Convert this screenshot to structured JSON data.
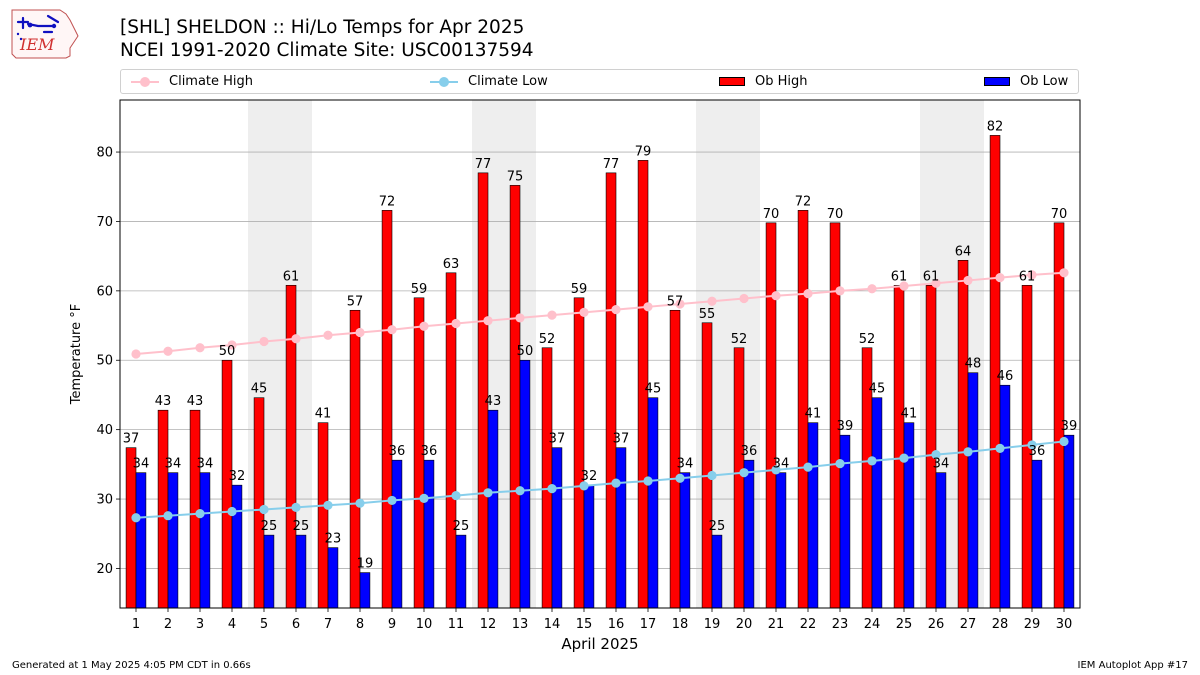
{
  "header": {
    "logo_text": "IEM",
    "title_line1": "[SHL] SHELDON :: Hi/Lo Temps for Apr 2025",
    "title_line2": "NCEI 1991-2020 Climate Site: USC00137594"
  },
  "legend": [
    {
      "label": "Climate High",
      "kind": "line",
      "color": "#ffc0cb"
    },
    {
      "label": "Climate Low",
      "kind": "line",
      "color": "#87ceeb"
    },
    {
      "label": "Ob High",
      "kind": "box",
      "color": "#ff0000"
    },
    {
      "label": "Ob Low",
      "kind": "box",
      "color": "#0000ff"
    }
  ],
  "footer": {
    "left": "Generated at 1 May 2025 4:05 PM CDT in 0.66s",
    "right": "IEM Autoplot App #17"
  },
  "chart_data": {
    "type": "bar",
    "xlabel": "April 2025",
    "ylabel": "Temperature °F",
    "ylim": [
      14.3,
      87.5
    ],
    "yticks": [
      20,
      30,
      40,
      50,
      60,
      70,
      80
    ],
    "grid": "horizontal",
    "weekend_shading": [
      [
        5,
        6
      ],
      [
        12,
        13
      ],
      [
        19,
        20
      ],
      [
        26,
        27
      ]
    ],
    "categories": [
      "1",
      "2",
      "3",
      "4",
      "5",
      "6",
      "7",
      "8",
      "9",
      "10",
      "11",
      "12",
      "13",
      "14",
      "15",
      "16",
      "17",
      "18",
      "19",
      "20",
      "21",
      "22",
      "23",
      "24",
      "25",
      "26",
      "27",
      "28",
      "29",
      "30"
    ],
    "series": [
      {
        "name": "Ob High",
        "kind": "bar",
        "color": "#ff0000",
        "values": [
          37.4,
          42.8,
          42.8,
          50,
          44.6,
          60.8,
          41,
          57.2,
          71.6,
          59,
          62.6,
          77,
          75.2,
          51.8,
          59,
          77,
          78.8,
          57.2,
          55.4,
          51.8,
          69.8,
          71.6,
          69.8,
          51.8,
          60.8,
          60.8,
          64.4,
          82.4,
          60.8,
          69.8
        ],
        "labels": [
          "37",
          "43",
          "43",
          "50",
          "45",
          "61",
          "41",
          "57",
          "72",
          "59",
          "63",
          "77",
          "75",
          "52",
          "59",
          "77",
          "79",
          "57",
          "55",
          "52",
          "70",
          "72",
          "70",
          "52",
          "61",
          "61",
          "64",
          "82",
          "61",
          "70"
        ]
      },
      {
        "name": "Ob Low",
        "kind": "bar",
        "color": "#0000ff",
        "values": [
          33.8,
          33.8,
          33.8,
          32,
          24.8,
          24.8,
          23,
          19.4,
          35.6,
          35.6,
          24.8,
          42.8,
          50,
          37.4,
          32,
          37.4,
          44.6,
          33.8,
          24.8,
          35.6,
          33.8,
          41,
          39.2,
          44.6,
          41,
          33.8,
          48.2,
          46.4,
          35.6,
          39.2
        ],
        "labels": [
          "34",
          "34",
          "34",
          "32",
          "25",
          "25",
          "23",
          "19",
          "36",
          "36",
          "25",
          "43",
          "50",
          "37",
          "32",
          "37",
          "45",
          "34",
          "25",
          "36",
          "34",
          "41",
          "39",
          "45",
          "41",
          "34",
          "48",
          "46",
          "36",
          "39"
        ]
      },
      {
        "name": "Climate High",
        "kind": "line",
        "color": "#ffc0cb",
        "values": [
          50.9,
          51.3,
          51.8,
          52.2,
          52.7,
          53.1,
          53.6,
          54,
          54.4,
          54.9,
          55.3,
          55.7,
          56.1,
          56.5,
          56.9,
          57.3,
          57.7,
          58.1,
          58.5,
          58.9,
          59.3,
          59.6,
          60,
          60.3,
          60.7,
          61.1,
          61.5,
          61.9,
          62.3,
          62.6
        ]
      },
      {
        "name": "Climate Low",
        "kind": "line",
        "color": "#87ceeb",
        "values": [
          27.3,
          27.6,
          27.9,
          28.2,
          28.5,
          28.8,
          29.1,
          29.4,
          29.8,
          30.1,
          30.5,
          30.9,
          31.2,
          31.5,
          31.9,
          32.3,
          32.6,
          33,
          33.4,
          33.8,
          34.2,
          34.6,
          35.1,
          35.5,
          35.9,
          36.4,
          36.8,
          37.3,
          37.8,
          38.3
        ]
      }
    ]
  }
}
